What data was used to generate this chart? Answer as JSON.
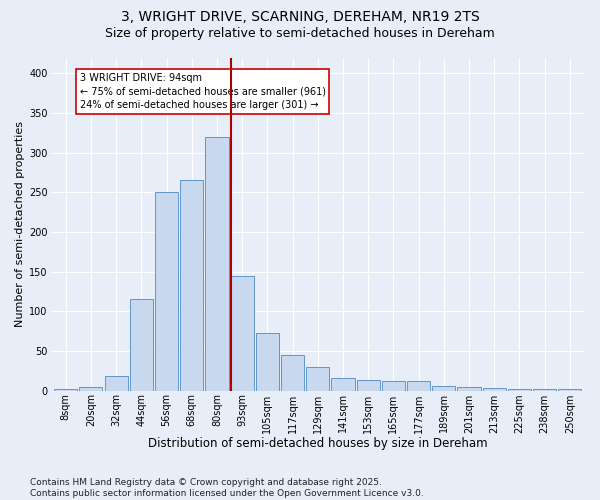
{
  "title1": "3, WRIGHT DRIVE, SCARNING, DEREHAM, NR19 2TS",
  "title2": "Size of property relative to semi-detached houses in Dereham",
  "xlabel": "Distribution of semi-detached houses by size in Dereham",
  "ylabel": "Number of semi-detached properties",
  "footnote": "Contains HM Land Registry data © Crown copyright and database right 2025.\nContains public sector information licensed under the Open Government Licence v3.0.",
  "bar_labels": [
    "8sqm",
    "20sqm",
    "32sqm",
    "44sqm",
    "56sqm",
    "68sqm",
    "80sqm",
    "93sqm",
    "105sqm",
    "117sqm",
    "129sqm",
    "141sqm",
    "153sqm",
    "165sqm",
    "177sqm",
    "189sqm",
    "201sqm",
    "213sqm",
    "225sqm",
    "238sqm",
    "250sqm"
  ],
  "bar_values": [
    2,
    4,
    18,
    115,
    250,
    265,
    320,
    145,
    73,
    45,
    30,
    16,
    13,
    12,
    12,
    6,
    4,
    3,
    2,
    2,
    2
  ],
  "bar_color": "#c8d9ef",
  "bar_edge_color": "#6096c8",
  "vline_index": 7,
  "vline_color": "#aa0000",
  "annotation_text": "3 WRIGHT DRIVE: 94sqm\n← 75% of semi-detached houses are smaller (961)\n24% of semi-detached houses are larger (301) →",
  "annotation_box_color": "#cc0000",
  "ylim": [
    0,
    420
  ],
  "yticks": [
    0,
    50,
    100,
    150,
    200,
    250,
    300,
    350,
    400
  ],
  "background_color": "#e8eef8",
  "plot_bg_color": "#e8eef8",
  "title1_fontsize": 10,
  "title2_fontsize": 9,
  "xlabel_fontsize": 8.5,
  "ylabel_fontsize": 8,
  "footnote_fontsize": 6.5,
  "grid_color": "#ffffff",
  "tick_label_fontsize": 7
}
